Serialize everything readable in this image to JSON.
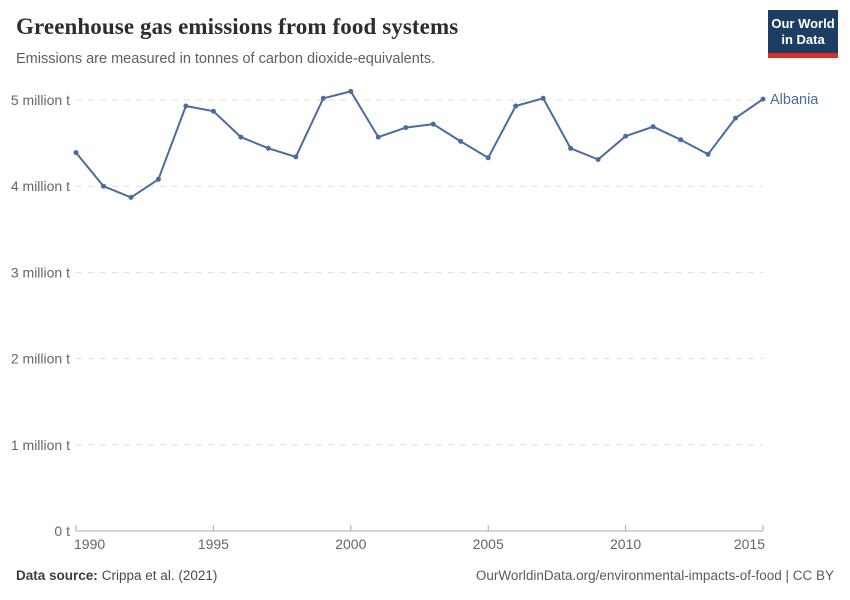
{
  "header": {
    "title": "Greenhouse gas emissions from food systems",
    "subtitle": "Emissions are measured in tonnes of carbon dioxide-equivalents."
  },
  "logo": {
    "line1": "Our World",
    "line2": "in Data"
  },
  "colors": {
    "line": "#4c6ba0",
    "entity_label": "#4c6ba0",
    "logo_background": "#1d3d63",
    "logo_underline": "#dc2e22",
    "gridline": "#dedede",
    "axis": "#a8a8a8",
    "tick_label": "#666666"
  },
  "chart_data": {
    "type": "line",
    "title": "Greenhouse gas emissions from food systems",
    "subtitle": "Emissions are measured in tonnes of carbon dioxide-equivalents.",
    "xlabel": "",
    "ylabel": "",
    "unit": "tonnes of carbon dioxide-equivalents",
    "grid": "horizontal-dashed",
    "legend_position": "end-of-line-label",
    "xlim": [
      1990,
      2015
    ],
    "ylim": [
      0,
      5.35
    ],
    "x": [
      1990,
      1991,
      1992,
      1993,
      1994,
      1995,
      1996,
      1997,
      1998,
      1999,
      2000,
      2001,
      2002,
      2003,
      2004,
      2005,
      2006,
      2007,
      2008,
      2009,
      2010,
      2011,
      2012,
      2013,
      2014,
      2015
    ],
    "series": [
      {
        "name": "Albania",
        "color": "#4c6ba0",
        "values": [
          4.39,
          4.0,
          3.87,
          4.08,
          4.93,
          4.87,
          4.57,
          4.44,
          4.34,
          5.02,
          5.1,
          4.57,
          4.68,
          4.72,
          4.52,
          4.33,
          4.93,
          5.02,
          4.44,
          4.31,
          4.58,
          4.69,
          4.54,
          4.37,
          4.79,
          5.01
        ]
      }
    ],
    "y_ticks": [
      {
        "value": 0,
        "label": "0 t"
      },
      {
        "value": 1,
        "label": "1 million t"
      },
      {
        "value": 2,
        "label": "2 million t"
      },
      {
        "value": 3,
        "label": "3 million t"
      },
      {
        "value": 4,
        "label": "4 million t"
      },
      {
        "value": 5,
        "label": "5 million t"
      }
    ],
    "x_ticks": [
      1990,
      1995,
      2000,
      2005,
      2010,
      2015
    ]
  },
  "footer": {
    "source_label": "Data source:",
    "source_value": "Crippa et al. (2021)",
    "attribution": "OurWorldinData.org/environmental-impacts-of-food | CC BY"
  }
}
